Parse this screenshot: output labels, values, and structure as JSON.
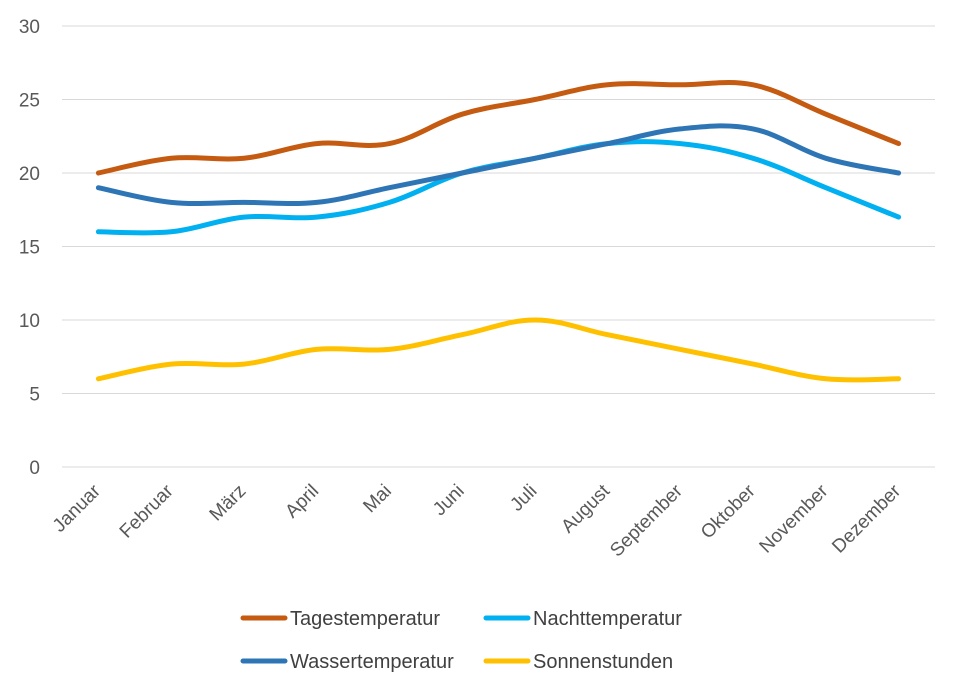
{
  "chart_data": {
    "type": "line",
    "categories": [
      "Januar",
      "Februar",
      "März",
      "April",
      "Mai",
      "Juni",
      "Juli",
      "August",
      "September",
      "Oktober",
      "November",
      "Dezember"
    ],
    "ylim": [
      0,
      30
    ],
    "yticks": [
      0,
      5,
      10,
      15,
      20,
      25,
      30
    ],
    "grid": true,
    "legend_position": "bottom",
    "smooth": true,
    "series": [
      {
        "name": "Tagestemperatur",
        "color": "#C55A11",
        "values": [
          20,
          21,
          21,
          22,
          22,
          24,
          25,
          26,
          26,
          26,
          24,
          22
        ]
      },
      {
        "name": "Nachttemperatur",
        "color": "#00B0F0",
        "values": [
          16,
          16,
          17,
          17,
          18,
          20,
          21,
          22,
          22,
          21,
          19,
          17
        ]
      },
      {
        "name": "Wassertemperatur",
        "color": "#2E75B6",
        "values": [
          19,
          18,
          18,
          18,
          19,
          20,
          21,
          22,
          23,
          23,
          21,
          20
        ]
      },
      {
        "name": "Sonnenstunden",
        "color": "#FFC000",
        "values": [
          6,
          7,
          7,
          8,
          8,
          9,
          10,
          9,
          8,
          7,
          6,
          6
        ]
      }
    ]
  }
}
